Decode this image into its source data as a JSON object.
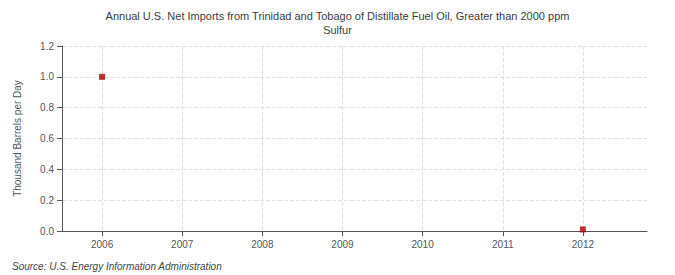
{
  "chart_data": {
    "type": "scatter",
    "title": "Annual U.S. Net Imports from Trinidad and Tobago of Distillate Fuel Oil, Greater than 2000 ppm\nSulfur",
    "ylabel": "Thousand Barrels per Day",
    "annotations": [
      "Source: U.S. Energy Information Administration"
    ],
    "x": [
      2006,
      2012
    ],
    "values": [
      1.0,
      0.01
    ],
    "color": "#aa0000",
    "marker": "square",
    "xlim": [
      2005.5,
      2012.8
    ],
    "xticks": [
      2006,
      2007,
      2008,
      2009,
      2010,
      2011,
      2012
    ],
    "ylim": [
      0,
      1.2
    ],
    "yticks": [
      {
        "value": 0,
        "label": "0.0"
      },
      0.2,
      0.4,
      0.6,
      0.8,
      {
        "value": 1,
        "label": "1.0"
      },
      1.2
    ],
    "grid": true
  }
}
